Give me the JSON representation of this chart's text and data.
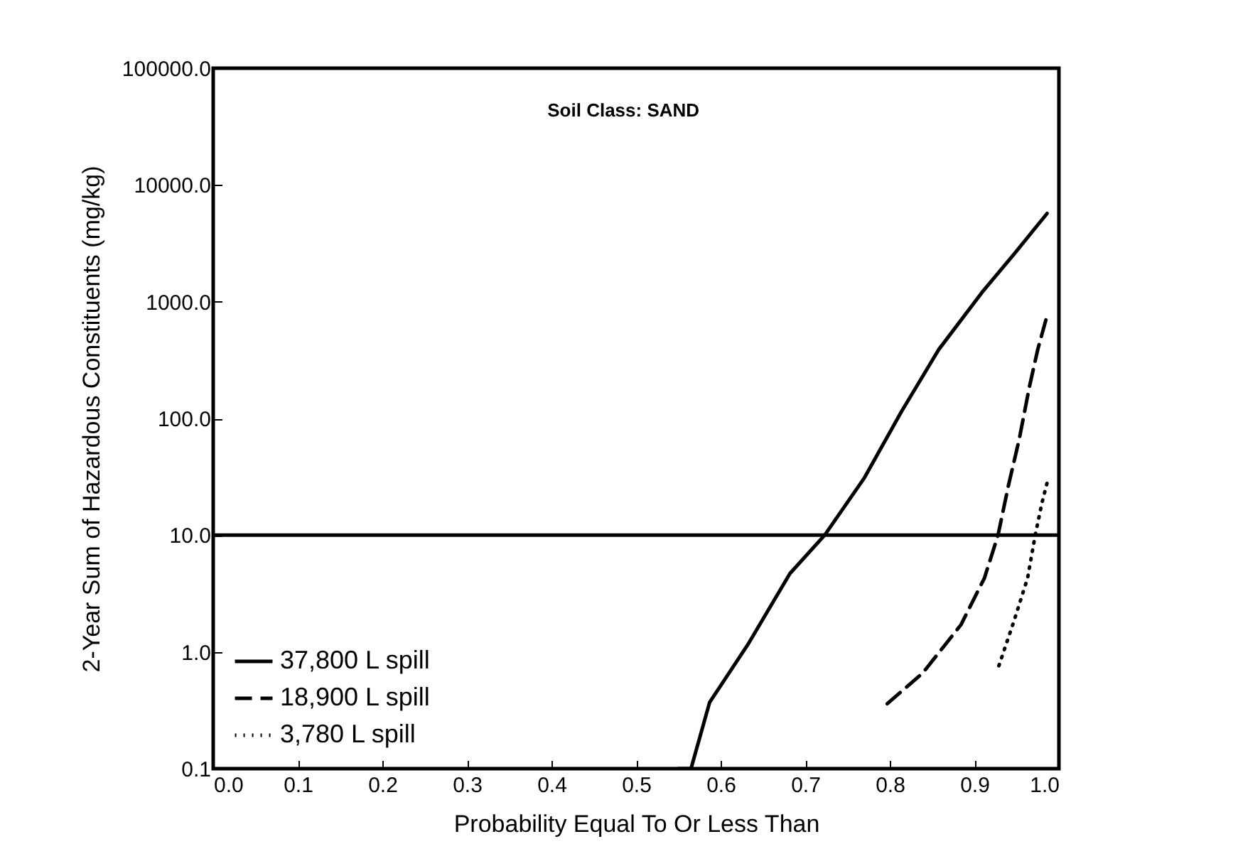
{
  "chart_data": {
    "type": "line",
    "xlabel": "Probability Equal To Or Less Than",
    "ylabel": "2-Year Sum of Hazardous Constituents (mg/kg)",
    "annotations": [
      "Soil Class: SAND"
    ],
    "log": "y",
    "xlim": [
      0,
      1
    ],
    "xticks": [
      {
        "value": 0,
        "label": "0.0"
      },
      0.1,
      0.2,
      0.3,
      0.4,
      0.5,
      0.6,
      0.7,
      0.8,
      0.9,
      {
        "value": 1,
        "label": "1.0"
      }
    ],
    "ylim": [
      0.1,
      100000
    ],
    "yticks": [
      0.1,
      {
        "value": 1,
        "label": "1.0"
      },
      {
        "value": 10,
        "label": "10.0"
      },
      {
        "value": 100,
        "label": "100.0"
      },
      {
        "value": 1000,
        "label": "1000.0"
      },
      {
        "value": 10000,
        "label": "10000.0"
      },
      {
        "value": 100000,
        "label": "100000.0"
      }
    ],
    "grid": false,
    "legend": "bottom left",
    "ref_lines": [
      {
        "axis": "y",
        "value": 10,
        "color": "#000000",
        "line_style": "solid"
      }
    ],
    "series": [
      {
        "name": "37,800 L  spill",
        "color": "#000000",
        "line_style": "solid",
        "x": [
          0.55,
          0.565,
          0.587,
          0.632,
          0.682,
          0.723,
          0.77,
          0.814,
          0.858,
          0.909,
          0.947,
          0.986
        ],
        "values": [
          0.1,
          0.1,
          0.37,
          1.15,
          4.7,
          10,
          31,
          115,
          390,
          1200,
          2560,
          5700
        ]
      },
      {
        "name": "18,900 L  spill",
        "color": "#000000",
        "line_style": "dashed",
        "x": [
          0.797,
          0.839,
          0.884,
          0.912,
          0.928,
          0.94,
          0.953,
          0.965,
          0.975,
          0.986
        ],
        "values": [
          0.36,
          0.66,
          1.7,
          4.3,
          10,
          26,
          66,
          185,
          390,
          760
        ]
      },
      {
        "name": "3,780 L  spill",
        "color": "#000000",
        "line_style": "dotted",
        "x": [
          0.929,
          0.947,
          0.963,
          0.972,
          0.98,
          0.986
        ],
        "values": [
          0.76,
          1.85,
          4.3,
          10,
          19,
          28
        ]
      }
    ]
  }
}
